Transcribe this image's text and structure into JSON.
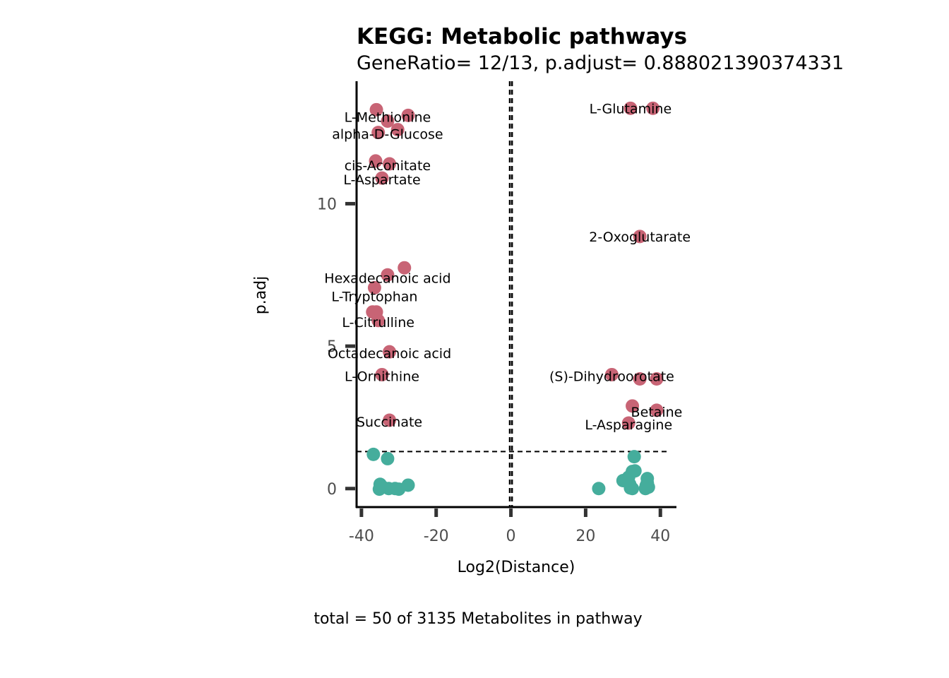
{
  "chart_data": {
    "type": "scatter",
    "title": "KEGG: Metabolic pathways",
    "subtitle": "GeneRatio= 12/13, p.adjust= 0.888021390374331",
    "xlabel": "Log2(Distance)",
    "ylabel": "p.adj",
    "caption": "total = 50 of 3135 Metabolites in pathway",
    "xlim": [
      -41.3,
      44.3
    ],
    "ylim": [
      -0.65,
      14.3
    ],
    "x_ticks": [
      -40,
      -20,
      0,
      20,
      40
    ],
    "x_tick_labels": [
      "-40",
      "-20",
      "0",
      "20",
      "40"
    ],
    "y_ticks": [
      0,
      5,
      10
    ],
    "y_tick_labels": [
      "0",
      "5",
      "10"
    ],
    "grid": false,
    "legend": "none",
    "vlines": [
      -0.3,
      0.3
    ],
    "hline": 1.3,
    "colors": {
      "significant": "#C86475",
      "nonsignificant": "#45AD9C"
    },
    "series": [
      {
        "group": "significant",
        "points": [
          {
            "x": -36.0,
            "y": 13.3
          },
          {
            "x": -27.5,
            "y": 13.1
          },
          {
            "x": -33.0,
            "y": 12.9
          },
          {
            "x": -30.3,
            "y": 12.6
          },
          {
            "x": -35.5,
            "y": 12.5
          },
          {
            "x": -36.2,
            "y": 11.5
          },
          {
            "x": -32.5,
            "y": 11.4
          },
          {
            "x": -34.5,
            "y": 10.9
          },
          {
            "x": -28.5,
            "y": 7.75
          },
          {
            "x": -33.0,
            "y": 7.5
          },
          {
            "x": -36.5,
            "y": 7.05
          },
          {
            "x": -37.0,
            "y": 6.2
          },
          {
            "x": -36.0,
            "y": 6.2
          },
          {
            "x": -35.5,
            "y": 5.9
          },
          {
            "x": -32.5,
            "y": 4.8
          },
          {
            "x": -34.5,
            "y": 4.0
          },
          {
            "x": -32.5,
            "y": 2.4
          },
          {
            "x": 32.0,
            "y": 13.35
          },
          {
            "x": 38.0,
            "y": 13.35
          },
          {
            "x": 34.5,
            "y": 8.85
          },
          {
            "x": 27.0,
            "y": 4.0
          },
          {
            "x": 34.5,
            "y": 3.85
          },
          {
            "x": 39.0,
            "y": 3.85
          },
          {
            "x": 32.5,
            "y": 2.9
          },
          {
            "x": 39.0,
            "y": 2.75
          },
          {
            "x": 31.5,
            "y": 2.3
          }
        ]
      },
      {
        "group": "nonsignificant",
        "points": [
          {
            "x": -36.8,
            "y": 1.2
          },
          {
            "x": -33.0,
            "y": 1.05
          },
          {
            "x": -35.0,
            "y": 0.15
          },
          {
            "x": -34.3,
            "y": 0.05
          },
          {
            "x": -32.7,
            "y": 0.0
          },
          {
            "x": -30.0,
            "y": -0.02
          },
          {
            "x": -31.0,
            "y": 0.0
          },
          {
            "x": -35.2,
            "y": -0.02
          },
          {
            "x": -27.5,
            "y": 0.12
          },
          {
            "x": 23.5,
            "y": 0.0
          },
          {
            "x": 30.0,
            "y": 0.28
          },
          {
            "x": 31.5,
            "y": 0.4
          },
          {
            "x": 32.0,
            "y": 0.02
          },
          {
            "x": 32.5,
            "y": 0.6
          },
          {
            "x": 33.0,
            "y": 1.12
          },
          {
            "x": 31.8,
            "y": 0.15
          },
          {
            "x": 36.5,
            "y": 0.35
          },
          {
            "x": 36.8,
            "y": 0.05
          },
          {
            "x": 36.5,
            "y": 0.2
          },
          {
            "x": 32.5,
            "y": 0.0
          },
          {
            "x": 36.2,
            "y": 0.1
          },
          {
            "x": 33.2,
            "y": 0.62
          },
          {
            "x": 31.0,
            "y": 0.3
          },
          {
            "x": 36.0,
            "y": 0.0
          }
        ]
      }
    ],
    "labels": [
      {
        "text": "L-Glutamine",
        "x": 32.0,
        "y": 13.35
      },
      {
        "text": "L-Methionine",
        "x": -33.0,
        "y": 13.05
      },
      {
        "text": "alpha-D-Glucose",
        "x": -33.0,
        "y": 12.45
      },
      {
        "text": "cis-Aconitate",
        "x": -33.0,
        "y": 11.35
      },
      {
        "text": "L-Aspartate",
        "x": -34.5,
        "y": 10.85
      },
      {
        "text": "2-Oxoglutarate",
        "x": 34.5,
        "y": 8.85
      },
      {
        "text": "Hexadecanoic acid",
        "x": -33.0,
        "y": 7.4
      },
      {
        "text": "L-Tryptophan",
        "x": -36.5,
        "y": 6.75
      },
      {
        "text": "L-Citrulline",
        "x": -35.5,
        "y": 5.85
      },
      {
        "text": "Octadecanoic acid",
        "x": -32.5,
        "y": 4.75
      },
      {
        "text": "L-Ornithine",
        "x": -34.5,
        "y": 3.95
      },
      {
        "text": "(S)-Dihydroorotate",
        "x": 27.0,
        "y": 3.95
      },
      {
        "text": "Betaine",
        "x": 39.0,
        "y": 2.7
      },
      {
        "text": "L-Asparagine",
        "x": 31.5,
        "y": 2.25
      },
      {
        "text": "Succinate",
        "x": -32.5,
        "y": 2.35
      }
    ]
  }
}
